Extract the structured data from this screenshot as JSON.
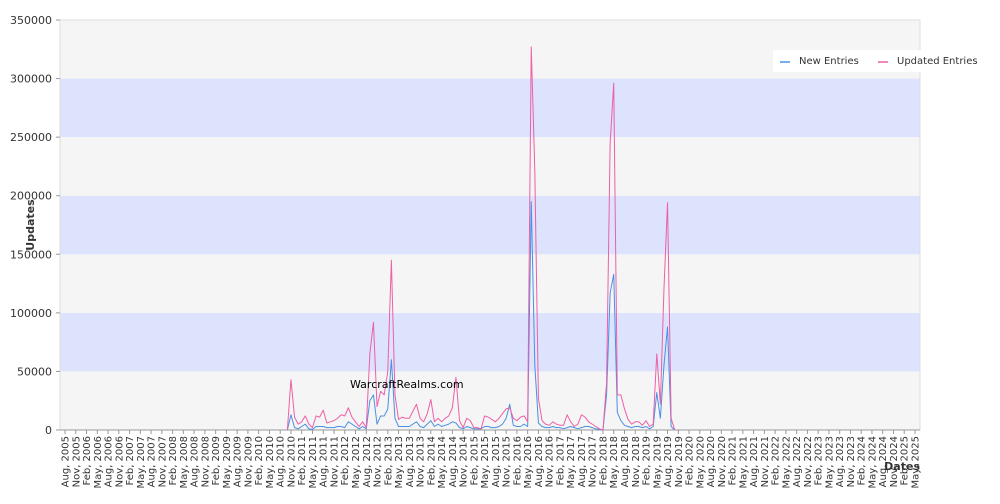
{
  "chart_data": {
    "type": "line",
    "title": "",
    "watermark": "WarcraftRealms.com",
    "xlabel": "Dates",
    "ylabel": "Updates",
    "ylim": [
      0,
      350000
    ],
    "yticks": [
      0,
      50000,
      100000,
      150000,
      200000,
      250000,
      300000,
      350000
    ],
    "legend_position": "top-right",
    "grid": true,
    "band_colors": [
      "#f5f5f5",
      "#dde3fc"
    ],
    "x_start": "2005-08",
    "x_tick_labels": [
      "Aug, 2005",
      "Nov, 2005",
      "Feb, 2006",
      "May, 2006",
      "Aug, 2006",
      "Nov, 2006",
      "Feb, 2007",
      "May, 2007",
      "Aug, 2007",
      "Nov, 2007",
      "Feb, 2008",
      "May, 2008",
      "Aug, 2008",
      "Nov, 2008",
      "Feb, 2009",
      "May, 2009",
      "Aug, 2009",
      "Nov, 2009",
      "Feb, 2010",
      "May, 2010",
      "Aug, 2010",
      "Nov, 2010",
      "Feb, 2011",
      "May, 2011",
      "Aug, 2011",
      "Nov, 2011",
      "Feb, 2012",
      "May, 2012",
      "Aug, 2012",
      "Nov, 2012",
      "Feb, 2013",
      "May, 2013",
      "Aug, 2013",
      "Nov, 2013",
      "Feb, 2014",
      "May, 2014",
      "Aug, 2014",
      "Nov, 2014",
      "Feb, 2015",
      "May, 2015",
      "Aug, 2015",
      "Nov, 2015",
      "Feb, 2016",
      "May, 2016",
      "Aug, 2016",
      "Nov, 2016",
      "Feb, 2017",
      "May, 2017",
      "Aug, 2017",
      "Nov, 2017",
      "Feb, 2018",
      "May, 2018",
      "Aug, 2018",
      "Nov, 2018",
      "Feb, 2019",
      "May, 2019",
      "Aug, 2019",
      "Nov, 2019",
      "Feb, 2020",
      "May, 2020",
      "Aug, 2020",
      "Nov, 2020",
      "Feb, 2021",
      "May, 2021",
      "Aug, 2021",
      "Nov, 2021",
      "Feb, 2022",
      "May, 2022",
      "Aug, 2022",
      "Nov, 2022",
      "Feb, 2023",
      "May, 2023",
      "Aug, 2023",
      "Nov, 2023",
      "Feb, 2024",
      "May, 2024",
      "Aug, 2024",
      "Nov, 2024",
      "Feb, 2025",
      "May, 2025"
    ],
    "series": [
      {
        "name": "New Entries",
        "color": "#4a90e2",
        "points": [
          [
            "2010-10",
            0
          ],
          [
            "2010-11",
            13000
          ],
          [
            "2010-12",
            2000
          ],
          [
            "2011-01",
            1000
          ],
          [
            "2011-02",
            3000
          ],
          [
            "2011-03",
            5000
          ],
          [
            "2011-04",
            1000
          ],
          [
            "2011-05",
            500
          ],
          [
            "2011-06",
            3000
          ],
          [
            "2011-07",
            3000
          ],
          [
            "2011-08",
            3000
          ],
          [
            "2011-09",
            2000
          ],
          [
            "2011-10",
            2000
          ],
          [
            "2011-11",
            2000
          ],
          [
            "2011-12",
            3000
          ],
          [
            "2012-01",
            3000
          ],
          [
            "2012-02",
            2000
          ],
          [
            "2012-03",
            7000
          ],
          [
            "2012-04",
            5000
          ],
          [
            "2012-05",
            3000
          ],
          [
            "2012-06",
            1000
          ],
          [
            "2012-07",
            3000
          ],
          [
            "2012-08",
            1000
          ],
          [
            "2012-09",
            25000
          ],
          [
            "2012-10",
            30000
          ],
          [
            "2012-11",
            5000
          ],
          [
            "2012-12",
            12000
          ],
          [
            "2013-01",
            12000
          ],
          [
            "2013-02",
            18000
          ],
          [
            "2013-03",
            60000
          ],
          [
            "2013-04",
            10000
          ],
          [
            "2013-05",
            3000
          ],
          [
            "2013-06",
            3000
          ],
          [
            "2013-07",
            3000
          ],
          [
            "2013-08",
            3000
          ],
          [
            "2013-09",
            5000
          ],
          [
            "2013-10",
            7000
          ],
          [
            "2013-11",
            3000
          ],
          [
            "2013-12",
            2000
          ],
          [
            "2014-01",
            5000
          ],
          [
            "2014-02",
            8000
          ],
          [
            "2014-03",
            3000
          ],
          [
            "2014-04",
            5000
          ],
          [
            "2014-05",
            3000
          ],
          [
            "2014-06",
            4000
          ],
          [
            "2014-07",
            5000
          ],
          [
            "2014-08",
            7000
          ],
          [
            "2014-09",
            6000
          ],
          [
            "2014-10",
            2000
          ],
          [
            "2014-11",
            1000
          ],
          [
            "2014-12",
            3000
          ],
          [
            "2015-01",
            2000
          ],
          [
            "2015-02",
            1000
          ],
          [
            "2015-03",
            1000
          ],
          [
            "2015-04",
            1000
          ],
          [
            "2015-05",
            3000
          ],
          [
            "2015-06",
            3000
          ],
          [
            "2015-07",
            2000
          ],
          [
            "2015-08",
            2000
          ],
          [
            "2015-09",
            3000
          ],
          [
            "2015-10",
            5000
          ],
          [
            "2015-11",
            10000
          ],
          [
            "2015-12",
            22000
          ],
          [
            "2016-01",
            4000
          ],
          [
            "2016-02",
            3000
          ],
          [
            "2016-03",
            3000
          ],
          [
            "2016-04",
            5000
          ],
          [
            "2016-05",
            3000
          ],
          [
            "2016-06",
            195000
          ],
          [
            "2016-07",
            55000
          ],
          [
            "2016-08",
            6000
          ],
          [
            "2016-09",
            3000
          ],
          [
            "2016-10",
            2000
          ],
          [
            "2016-11",
            2000
          ],
          [
            "2016-12",
            3000
          ],
          [
            "2017-01",
            2000
          ],
          [
            "2017-02",
            2000
          ],
          [
            "2017-03",
            1000
          ],
          [
            "2017-04",
            2000
          ],
          [
            "2017-05",
            3000
          ],
          [
            "2017-06",
            2000
          ],
          [
            "2017-07",
            1000
          ],
          [
            "2017-08",
            2000
          ],
          [
            "2017-09",
            3000
          ],
          [
            "2017-10",
            3000
          ],
          [
            "2017-11",
            2000
          ],
          [
            "2017-12",
            1000
          ],
          [
            "2018-01",
            500
          ],
          [
            "2018-02",
            0
          ],
          [
            "2018-03",
            30000
          ],
          [
            "2018-04",
            117000
          ],
          [
            "2018-05",
            133000
          ],
          [
            "2018-06",
            15000
          ],
          [
            "2018-07",
            8000
          ],
          [
            "2018-08",
            4000
          ],
          [
            "2018-09",
            3000
          ],
          [
            "2018-10",
            2000
          ],
          [
            "2018-11",
            3000
          ],
          [
            "2018-12",
            3000
          ],
          [
            "2019-01",
            2000
          ],
          [
            "2019-02",
            3000
          ],
          [
            "2019-03",
            1000
          ],
          [
            "2019-04",
            3000
          ],
          [
            "2019-05",
            32000
          ],
          [
            "2019-06",
            10000
          ],
          [
            "2019-07",
            55000
          ],
          [
            "2019-08",
            88000
          ],
          [
            "2019-09",
            3000
          ],
          [
            "2019-10",
            0
          ]
        ]
      },
      {
        "name": "Updated Entries",
        "color": "#ee5fa7",
        "points": [
          [
            "2010-10",
            0
          ],
          [
            "2010-11",
            43000
          ],
          [
            "2010-12",
            11000
          ],
          [
            "2011-01",
            5000
          ],
          [
            "2011-02",
            7000
          ],
          [
            "2011-03",
            12000
          ],
          [
            "2011-04",
            5000
          ],
          [
            "2011-05",
            2000
          ],
          [
            "2011-06",
            12000
          ],
          [
            "2011-07",
            11000
          ],
          [
            "2011-08",
            17000
          ],
          [
            "2011-09",
            6000
          ],
          [
            "2011-10",
            7000
          ],
          [
            "2011-11",
            8000
          ],
          [
            "2011-12",
            10000
          ],
          [
            "2012-01",
            13000
          ],
          [
            "2012-02",
            12000
          ],
          [
            "2012-03",
            19000
          ],
          [
            "2012-04",
            11000
          ],
          [
            "2012-05",
            7000
          ],
          [
            "2012-06",
            3000
          ],
          [
            "2012-07",
            7000
          ],
          [
            "2012-08",
            2000
          ],
          [
            "2012-09",
            65000
          ],
          [
            "2012-10",
            92000
          ],
          [
            "2012-11",
            20000
          ],
          [
            "2012-12",
            33000
          ],
          [
            "2013-01",
            30000
          ],
          [
            "2013-02",
            50000
          ],
          [
            "2013-03",
            145000
          ],
          [
            "2013-04",
            30000
          ],
          [
            "2013-05",
            9000
          ],
          [
            "2013-06",
            11000
          ],
          [
            "2013-07",
            10000
          ],
          [
            "2013-08",
            10000
          ],
          [
            "2013-09",
            16000
          ],
          [
            "2013-10",
            22000
          ],
          [
            "2013-11",
            10000
          ],
          [
            "2013-12",
            7000
          ],
          [
            "2014-01",
            14000
          ],
          [
            "2014-02",
            26000
          ],
          [
            "2014-03",
            7000
          ],
          [
            "2014-04",
            10000
          ],
          [
            "2014-05",
            7000
          ],
          [
            "2014-06",
            10000
          ],
          [
            "2014-07",
            12000
          ],
          [
            "2014-08",
            19000
          ],
          [
            "2014-09",
            45000
          ],
          [
            "2014-10",
            8000
          ],
          [
            "2014-11",
            2000
          ],
          [
            "2014-12",
            10000
          ],
          [
            "2015-01",
            8000
          ],
          [
            "2015-02",
            2000
          ],
          [
            "2015-03",
            2000
          ],
          [
            "2015-04",
            1000
          ],
          [
            "2015-05",
            12000
          ],
          [
            "2015-06",
            11000
          ],
          [
            "2015-07",
            9000
          ],
          [
            "2015-08",
            7000
          ],
          [
            "2015-09",
            10000
          ],
          [
            "2015-10",
            14000
          ],
          [
            "2015-11",
            18000
          ],
          [
            "2015-12",
            19000
          ],
          [
            "2016-01",
            10000
          ],
          [
            "2016-02",
            8000
          ],
          [
            "2016-03",
            11000
          ],
          [
            "2016-04",
            12000
          ],
          [
            "2016-05",
            7000
          ],
          [
            "2016-06",
            327000
          ],
          [
            "2016-07",
            220000
          ],
          [
            "2016-08",
            27000
          ],
          [
            "2016-09",
            8000
          ],
          [
            "2016-10",
            5000
          ],
          [
            "2016-11",
            4000
          ],
          [
            "2016-12",
            7000
          ],
          [
            "2017-01",
            5000
          ],
          [
            "2017-02",
            4000
          ],
          [
            "2017-03",
            4000
          ],
          [
            "2017-04",
            13000
          ],
          [
            "2017-05",
            7000
          ],
          [
            "2017-06",
            3000
          ],
          [
            "2017-07",
            5000
          ],
          [
            "2017-08",
            13000
          ],
          [
            "2017-09",
            11000
          ],
          [
            "2017-10",
            7000
          ],
          [
            "2017-11",
            5000
          ],
          [
            "2017-12",
            3000
          ],
          [
            "2018-01",
            1000
          ],
          [
            "2018-02",
            0
          ],
          [
            "2018-03",
            40000
          ],
          [
            "2018-04",
            245000
          ],
          [
            "2018-05",
            296000
          ],
          [
            "2018-06",
            30000
          ],
          [
            "2018-07",
            30000
          ],
          [
            "2018-08",
            18000
          ],
          [
            "2018-09",
            9000
          ],
          [
            "2018-10",
            5000
          ],
          [
            "2018-11",
            7000
          ],
          [
            "2018-12",
            7000
          ],
          [
            "2019-01",
            4000
          ],
          [
            "2019-02",
            8000
          ],
          [
            "2019-03",
            3000
          ],
          [
            "2019-04",
            5000
          ],
          [
            "2019-05",
            65000
          ],
          [
            "2019-06",
            22000
          ],
          [
            "2019-07",
            120000
          ],
          [
            "2019-08",
            194000
          ],
          [
            "2019-09",
            10000
          ],
          [
            "2019-10",
            0
          ]
        ]
      }
    ]
  }
}
